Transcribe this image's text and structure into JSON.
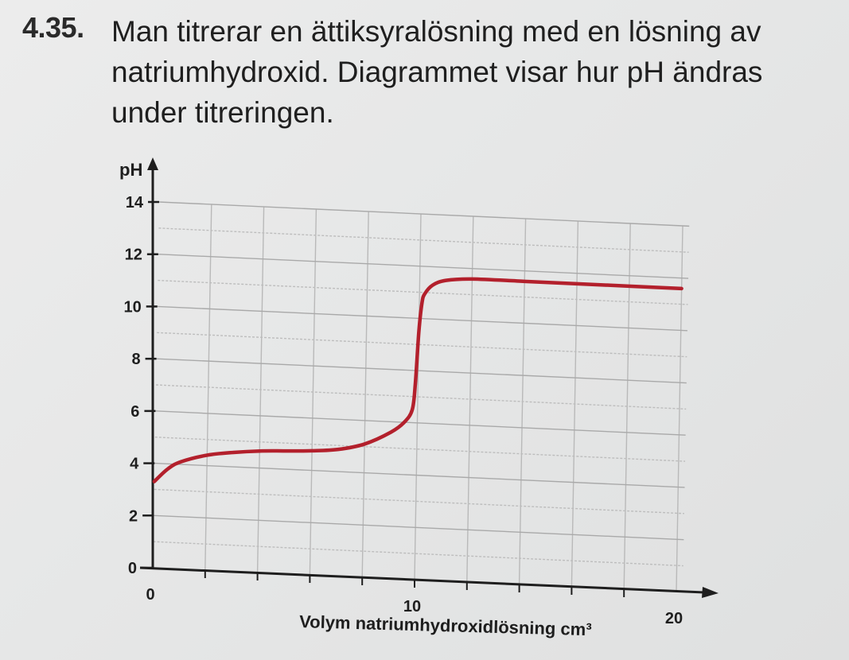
{
  "problem": {
    "number": "4.35.",
    "lines": [
      "Man titrerar en ättiksyralösning med en lösning av",
      "natriumhydroxid. Diagrammet visar hur pH ändras",
      "under titreringen."
    ]
  },
  "chart_data": {
    "type": "line",
    "title": "",
    "xlabel": "Volym natriumhydroxidlösning",
    "xlabel_unit": "cm³",
    "ylabel": "pH",
    "xlim": [
      0,
      20
    ],
    "ylim": [
      0,
      14
    ],
    "x_ticks": [
      "0",
      "10",
      "20"
    ],
    "y_ticks": [
      "0",
      "2",
      "4",
      "6",
      "8",
      "10",
      "12",
      "14"
    ],
    "grid": true,
    "line_color": "#b3202c",
    "series": [
      {
        "x": [
          0,
          0.5,
          1,
          2,
          3,
          4,
          5,
          6,
          7,
          8,
          9,
          9.5,
          9.8,
          9.9,
          10,
          10.1,
          10.2,
          10.5,
          11,
          12,
          14,
          16,
          18,
          20
        ],
        "y": [
          3.3,
          3.8,
          4.1,
          4.4,
          4.55,
          4.65,
          4.7,
          4.75,
          4.85,
          5.1,
          5.6,
          6.0,
          6.5,
          7.5,
          9.5,
          10.6,
          10.95,
          11.3,
          11.5,
          11.6,
          11.6,
          11.6,
          11.6,
          11.6
        ]
      }
    ]
  }
}
